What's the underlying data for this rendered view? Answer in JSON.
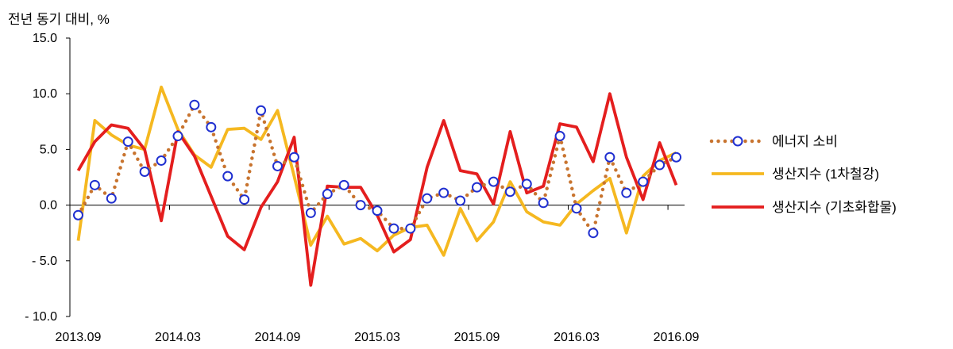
{
  "chart_data": {
    "type": "line",
    "ylabel": "전년 동기 대비, %",
    "ylim": [
      -10,
      15
    ],
    "yticks": [
      15,
      10,
      5,
      0,
      -5,
      -10
    ],
    "ytick_labels": [
      "15.0",
      "10.0",
      "5.0",
      "0.0",
      "- 5.0",
      "- 10.0"
    ],
    "x_tick_labels": [
      {
        "index": 0,
        "label": "2013.09"
      },
      {
        "index": 6,
        "label": "2014.03"
      },
      {
        "index": 12,
        "label": "2014.09"
      },
      {
        "index": 18,
        "label": "2015.03"
      },
      {
        "index": 24,
        "label": "2015.09"
      },
      {
        "index": 30,
        "label": "2016.03"
      },
      {
        "index": 36,
        "label": "2016.09"
      }
    ],
    "x": [
      "2013.09",
      "2013.10",
      "2013.11",
      "2013.12",
      "2014.01",
      "2014.02",
      "2014.03",
      "2014.04",
      "2014.05",
      "2014.06",
      "2014.07",
      "2014.08",
      "2014.09",
      "2014.10",
      "2014.11",
      "2014.12",
      "2015.01",
      "2015.02",
      "2015.03",
      "2015.04",
      "2015.05",
      "2015.06",
      "2015.07",
      "2015.08",
      "2015.09",
      "2015.10",
      "2015.11",
      "2015.12",
      "2016.01",
      "2016.02",
      "2016.03",
      "2016.04",
      "2016.05",
      "2016.06",
      "2016.07",
      "2016.08",
      "2016.09"
    ],
    "series": [
      {
        "name": "에너지 소비",
        "color": "#c8742f",
        "marker_color": "#1f2fd0",
        "style": "dotted-with-circles",
        "values": [
          -0.9,
          1.8,
          0.6,
          5.7,
          3.0,
          4.0,
          6.2,
          9.0,
          7.0,
          2.6,
          0.5,
          8.5,
          3.5,
          4.3,
          -0.7,
          1.0,
          1.8,
          0.0,
          -0.5,
          -2.1,
          -2.1,
          0.6,
          1.1,
          0.4,
          1.6,
          2.1,
          1.2,
          1.9,
          0.2,
          6.2,
          -0.3,
          -2.5,
          4.3,
          1.1,
          2.1,
          3.6,
          4.3
        ]
      },
      {
        "name": "생산지수 (1차철강)",
        "color": "#f5b820",
        "style": "solid",
        "values": [
          -3.2,
          7.6,
          6.3,
          5.4,
          5.0,
          10.6,
          6.8,
          4.5,
          3.4,
          6.8,
          6.9,
          5.9,
          8.5,
          2.6,
          -3.6,
          -1.0,
          -3.5,
          -3.0,
          -4.1,
          -2.7,
          -2.0,
          -1.8,
          -4.5,
          -0.3,
          -3.2,
          -1.5,
          2.1,
          -0.6,
          -1.5,
          -1.8,
          0.1,
          1.3,
          2.4,
          -2.5,
          2.6,
          4.0,
          4.7
        ]
      },
      {
        "name": "생산지수 (기초화합물)",
        "color": "#e41e1e",
        "style": "solid",
        "values": [
          3.1,
          5.7,
          7.2,
          6.9,
          5.0,
          -1.4,
          6.6,
          4.4,
          0.8,
          -2.8,
          -4.0,
          -0.2,
          2.1,
          6.1,
          -7.2,
          1.7,
          1.6,
          1.6,
          -0.9,
          -4.2,
          -3.1,
          3.4,
          7.6,
          3.1,
          2.8,
          0.1,
          6.6,
          1.1,
          1.7,
          7.3,
          7.0,
          3.9,
          10.0,
          4.3,
          0.5,
          5.6,
          1.8
        ]
      }
    ]
  }
}
